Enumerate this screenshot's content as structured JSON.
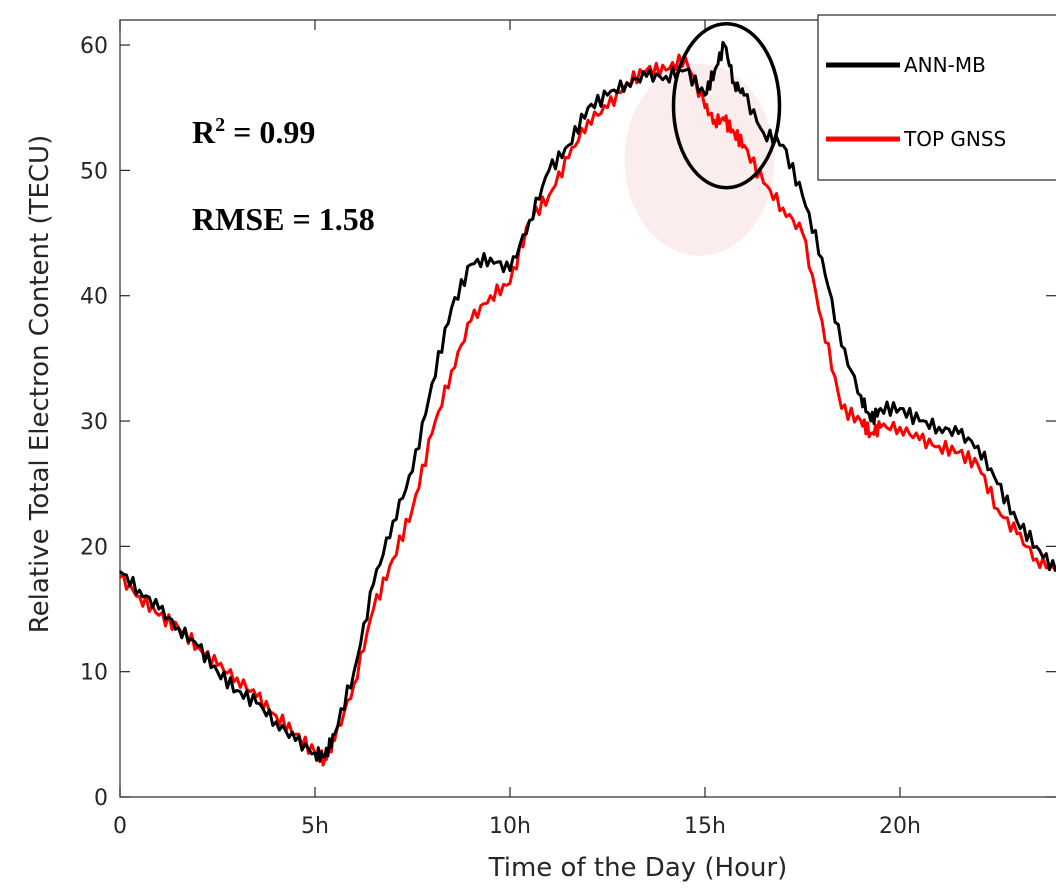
{
  "chart_data": {
    "type": "line",
    "title": "",
    "xlabel": "Time of the Day (Hour)",
    "ylabel": "Relative Total Electron Content (TECU)",
    "xlim": [
      0,
      24
    ],
    "ylim": [
      0,
      62
    ],
    "x_ticks": [
      0,
      5,
      10,
      15,
      20
    ],
    "x_tick_labels": [
      "0",
      "5h",
      "10h",
      "15h",
      "20h"
    ],
    "y_ticks": [
      0,
      10,
      20,
      30,
      40,
      50,
      60
    ],
    "y_tick_labels": [
      "0",
      "10",
      "20",
      "30",
      "40",
      "50",
      "60"
    ],
    "grid": false,
    "legend_position": "top-right",
    "annotations": {
      "r2_label": "R",
      "r2_superscript": "2",
      "r2_value": " = 0.99",
      "rmse_text": "RMSE = 1.58"
    },
    "highlight": {
      "center_x": 15.5,
      "center_y": 55,
      "note": ""
    },
    "series": [
      {
        "name": "ANN-MB",
        "color": "#000000",
        "x": [
          0,
          0.5,
          1,
          1.5,
          2,
          2.5,
          3,
          3.5,
          4,
          4.5,
          5,
          5.25,
          5.5,
          6,
          6.5,
          7,
          7.5,
          8,
          8.5,
          9,
          9.5,
          10,
          10.5,
          11,
          11.5,
          12,
          12.5,
          13,
          13.5,
          14,
          14.5,
          15,
          15.25,
          15.5,
          15.75,
          16,
          16.5,
          17,
          17.5,
          18,
          18.5,
          19,
          19.25,
          19.5,
          20,
          20.5,
          21,
          21.5,
          22,
          22.5,
          23,
          23.5,
          24
        ],
        "values": [
          18,
          16.5,
          15,
          13.5,
          12,
          10,
          8.5,
          7.5,
          6,
          4.5,
          3.5,
          3.2,
          5,
          10,
          17,
          22,
          26,
          33,
          39,
          42.5,
          43,
          42,
          46,
          50,
          52,
          55,
          56,
          57,
          57.5,
          57.5,
          58,
          56,
          58,
          60,
          57,
          56,
          53,
          52,
          48,
          43,
          36,
          32,
          30,
          31,
          31,
          30,
          29.5,
          29,
          28,
          25,
          22,
          20,
          18
        ]
      },
      {
        "name": "TOP GNSS",
        "color": "#ff0000",
        "x": [
          0,
          0.5,
          1,
          1.5,
          2,
          2.5,
          3,
          3.5,
          4,
          4.5,
          5,
          5.25,
          5.5,
          6,
          6.5,
          7,
          7.5,
          8,
          8.5,
          9,
          9.5,
          10,
          10.5,
          11,
          11.5,
          12,
          12.5,
          13,
          13.5,
          14,
          14.5,
          15,
          15.25,
          15.5,
          15.75,
          16,
          16.5,
          17,
          17.5,
          18,
          18.5,
          19,
          19.25,
          19.5,
          20,
          20.5,
          21,
          21.5,
          22,
          22.5,
          23,
          23.5,
          24
        ],
        "values": [
          17.5,
          16,
          14.5,
          13.5,
          12,
          10.5,
          9.5,
          8,
          6.5,
          5,
          3.5,
          3,
          4.5,
          9,
          15,
          19,
          23,
          29,
          34,
          38,
          40,
          41,
          46,
          48,
          51,
          54,
          55,
          57,
          58,
          58,
          59,
          55,
          54,
          54,
          53,
          52,
          49,
          47,
          45,
          38,
          31,
          30,
          29,
          29.5,
          29.5,
          28.5,
          28,
          27.5,
          26.5,
          23,
          21,
          19,
          18
        ]
      }
    ]
  }
}
